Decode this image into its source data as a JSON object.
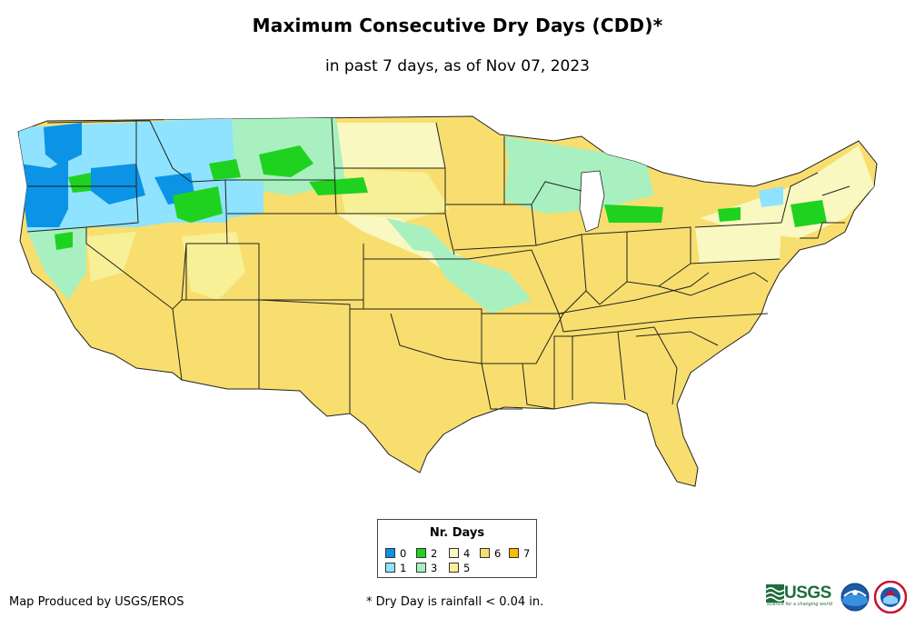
{
  "title": "Maximum Consecutive Dry Days (CDD)*",
  "subtitle": "in past 7 days, as of Nov 07, 2023",
  "legend": {
    "title": "Nr. Days",
    "items": [
      {
        "label": "0",
        "color": "#0b93e6"
      },
      {
        "label": "1",
        "color": "#8fe3ff"
      },
      {
        "label": "2",
        "color": "#1fd21f"
      },
      {
        "label": "3",
        "color": "#a8f0c0"
      },
      {
        "label": "4",
        "color": "#f8f8c0"
      },
      {
        "label": "5",
        "color": "#f8f096"
      },
      {
        "label": "6",
        "color": "#f8de6e"
      },
      {
        "label": "7",
        "color": "#f5bf00"
      }
    ]
  },
  "credit": "Map Produced by USGS/EROS",
  "footnote": "* Dry Day is rainfall < 0.04 in.",
  "logos": {
    "usgs_word": "USGS",
    "usgs_tagline": "science for a changing world",
    "noaa": "noaa-logo",
    "nws": "nws-logo"
  },
  "colors": {
    "state_border": "#222222",
    "background": "#ffffff"
  }
}
